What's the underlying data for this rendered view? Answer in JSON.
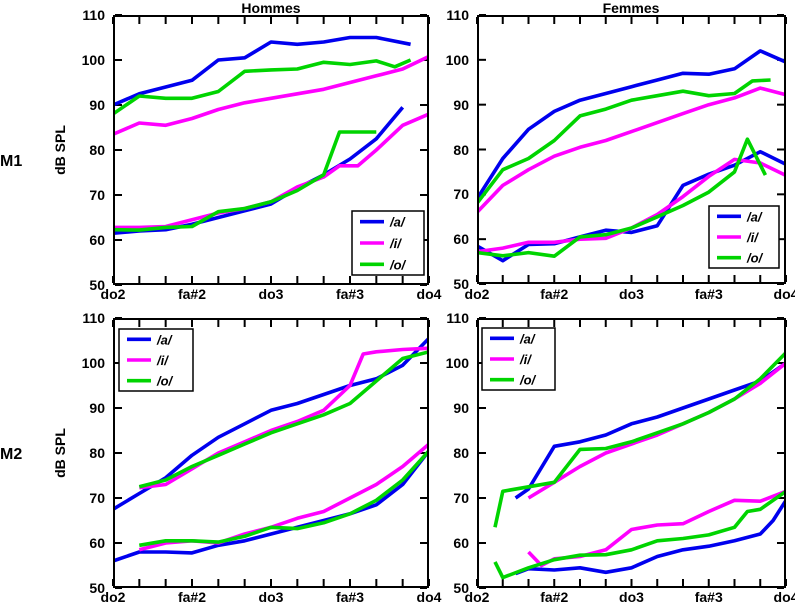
{
  "title_row": {
    "left": "Hommes",
    "right": "Femmes"
  },
  "row_labels": {
    "top": "M1",
    "bottom": "M2"
  },
  "ylabel": "dB SPL",
  "colors": {
    "a": "#0000EE",
    "i": "#FF00FF",
    "o": "#00D400"
  },
  "legend_items": [
    {
      "vowel": "a",
      "label": "/a/"
    },
    {
      "vowel": "i",
      "label": "/i/"
    },
    {
      "vowel": "o",
      "label": "/o/"
    }
  ],
  "axis": {
    "y_ticks": [
      50,
      60,
      70,
      80,
      90,
      100,
      110
    ],
    "y_range": [
      50,
      110
    ],
    "x_range": [
      0,
      12
    ],
    "n_x_ticks": 13,
    "x_major_positions": [
      0,
      3,
      6,
      9,
      12
    ],
    "x_major_labels": [
      "do2",
      "fa#2",
      "do3",
      "fa#3",
      "do4"
    ]
  },
  "chart_data": [
    {
      "id": "m1-hommes",
      "type": "line",
      "title": "Hommes",
      "row": "M1",
      "position": "top-left",
      "legend_pos": "bottom-right",
      "series": [
        {
          "name": "a_loud",
          "vowel": "a",
          "x": [
            0,
            1,
            2,
            3,
            4,
            5,
            6,
            7,
            8,
            9,
            10,
            11.3
          ],
          "y": [
            90,
            92.5,
            94,
            95.5,
            100,
            100.5,
            104,
            103.5,
            104,
            105,
            105,
            103.5
          ]
        },
        {
          "name": "i_loud",
          "vowel": "i",
          "x": [
            0,
            1,
            2,
            3,
            4,
            5,
            6,
            7,
            8,
            9,
            10,
            11,
            12
          ],
          "y": [
            83.5,
            86,
            85.5,
            87,
            89,
            90.5,
            91.5,
            92.5,
            93.5,
            95,
            96.5,
            98,
            100.8
          ]
        },
        {
          "name": "o_loud",
          "vowel": "o",
          "x": [
            0,
            1,
            2,
            3,
            4,
            5,
            6,
            7,
            8,
            9,
            10,
            10.7,
            11.3
          ],
          "y": [
            88,
            92,
            91.5,
            91.5,
            93,
            97.5,
            97.8,
            98,
            99.5,
            99,
            99.8,
            98.5,
            100
          ]
        },
        {
          "name": "a_soft",
          "vowel": "a",
          "x": [
            0,
            1,
            2,
            3,
            4,
            5,
            6,
            7,
            8,
            9,
            10,
            11
          ],
          "y": [
            61.5,
            62,
            62.3,
            63.5,
            65,
            66.5,
            68,
            71.5,
            74.5,
            78,
            82.5,
            89.5
          ]
        },
        {
          "name": "i_soft",
          "vowel": "i",
          "x": [
            0,
            1,
            2,
            3,
            4,
            5,
            6,
            7,
            8,
            8.6,
            9.3,
            10,
            11,
            12
          ],
          "y": [
            62.8,
            62.8,
            63,
            64.5,
            66,
            67,
            68.5,
            71.8,
            74,
            76.5,
            76.5,
            80,
            85.5,
            88
          ]
        },
        {
          "name": "o_soft",
          "vowel": "o",
          "x": [
            0,
            1,
            2,
            3,
            4,
            5,
            6,
            7,
            8,
            8.6,
            10
          ],
          "y": [
            62.3,
            62.2,
            62.8,
            63,
            66.3,
            67,
            68.5,
            71,
            74.5,
            84,
            84
          ]
        }
      ]
    },
    {
      "id": "m1-femmes",
      "type": "line",
      "title": "Femmes",
      "row": "M1",
      "position": "top-right",
      "legend_pos": "bottom-right",
      "series": [
        {
          "name": "a_loud",
          "vowel": "a",
          "x": [
            0,
            1,
            2,
            3,
            4,
            5,
            6,
            7,
            8,
            9,
            10,
            11,
            12
          ],
          "y": [
            69,
            78,
            84.5,
            88.5,
            91,
            92.5,
            94,
            95.5,
            97,
            96.8,
            98,
            102,
            99.5
          ]
        },
        {
          "name": "i_loud",
          "vowel": "i",
          "x": [
            0,
            1,
            2,
            3,
            4,
            5,
            6,
            7,
            8,
            9,
            10,
            11,
            12
          ],
          "y": [
            66,
            72,
            75.5,
            78.5,
            80.5,
            82,
            84,
            86,
            88,
            90,
            91.5,
            93.7,
            92.2
          ]
        },
        {
          "name": "o_loud",
          "vowel": "o",
          "x": [
            0,
            1,
            2,
            3,
            4,
            5,
            6,
            7,
            8,
            9,
            10,
            10.7,
            11.4
          ],
          "y": [
            68,
            75.5,
            78,
            82,
            87.5,
            89,
            91,
            92,
            93,
            92,
            92.5,
            95.3,
            95.5
          ]
        },
        {
          "name": "a_soft",
          "vowel": "a",
          "x": [
            0,
            1,
            2,
            3,
            4,
            5,
            6,
            7,
            8,
            9,
            10,
            11,
            12
          ],
          "y": [
            58.5,
            55.2,
            58.8,
            59,
            60.5,
            62,
            61.5,
            63,
            72,
            74.5,
            76.5,
            79.5,
            76.7
          ]
        },
        {
          "name": "i_soft",
          "vowel": "i",
          "x": [
            0,
            1,
            2,
            3,
            4,
            5,
            6,
            7,
            8,
            9,
            10,
            11,
            12
          ],
          "y": [
            57.2,
            58,
            59.3,
            59.3,
            60,
            60.2,
            62.5,
            65.5,
            69.5,
            74,
            77.8,
            77,
            74.2
          ]
        },
        {
          "name": "o_soft",
          "vowel": "o",
          "x": [
            0,
            1,
            2,
            3,
            4,
            5,
            6,
            7,
            8,
            9,
            10,
            10.5,
            11.2
          ],
          "y": [
            57,
            56.3,
            57,
            56.2,
            60.5,
            61,
            62.5,
            65,
            67.5,
            70.5,
            75,
            82.3,
            74.3
          ]
        }
      ]
    },
    {
      "id": "m2-hommes",
      "type": "line",
      "title": "Hommes",
      "row": "M2",
      "position": "bottom-left",
      "legend_pos": "top-left",
      "series": [
        {
          "name": "a_loud",
          "vowel": "a",
          "x": [
            0,
            1,
            2,
            3,
            4,
            5,
            6,
            7,
            8,
            9,
            10,
            11,
            12
          ],
          "y": [
            67.5,
            71,
            74.5,
            79.5,
            83.5,
            86.5,
            89.5,
            91,
            93,
            95,
            96.5,
            99.5,
            105.5
          ]
        },
        {
          "name": "i_loud",
          "vowel": "i",
          "x": [
            1,
            2,
            3,
            4,
            5,
            6,
            7,
            8,
            9,
            9.5,
            10,
            11,
            12
          ],
          "y": [
            72.3,
            73,
            76.5,
            80,
            82.5,
            85,
            87,
            89.5,
            95,
            102,
            102.5,
            103,
            103.3
          ]
        },
        {
          "name": "o_loud",
          "vowel": "o",
          "x": [
            1,
            2,
            3,
            4,
            5,
            6,
            7,
            8,
            9,
            10,
            11,
            12
          ],
          "y": [
            72.5,
            74,
            77,
            79.5,
            82,
            84.5,
            86.5,
            88.5,
            91,
            96,
            101,
            102.5
          ]
        },
        {
          "name": "a_soft",
          "vowel": "a",
          "x": [
            0,
            1,
            2,
            3,
            4,
            5,
            6,
            7,
            8,
            9,
            10,
            11,
            12
          ],
          "y": [
            56,
            58,
            58,
            57.8,
            59.5,
            60.5,
            62,
            63.5,
            65,
            66.5,
            68.5,
            73,
            80.5
          ]
        },
        {
          "name": "i_soft",
          "vowel": "i",
          "x": [
            1,
            2,
            3,
            4,
            5,
            6,
            7,
            8,
            9,
            10,
            11,
            12
          ],
          "y": [
            58.5,
            60,
            60.5,
            60,
            62,
            63.5,
            65.5,
            67,
            70,
            73,
            77,
            82
          ]
        },
        {
          "name": "o_soft",
          "vowel": "o",
          "x": [
            1,
            2,
            3,
            4,
            5,
            6,
            7,
            8,
            9,
            10,
            11,
            12
          ],
          "y": [
            59.5,
            60.5,
            60.5,
            60.2,
            61.5,
            63.5,
            63.2,
            64.5,
            66.5,
            69.5,
            74,
            80.5
          ]
        }
      ]
    },
    {
      "id": "m2-femmes",
      "type": "line",
      "title": "Femmes",
      "row": "M2",
      "position": "bottom-right",
      "legend_pos": "top-left",
      "series": [
        {
          "name": "a_loud",
          "vowel": "a",
          "x": [
            1.5,
            2,
            3,
            4,
            5,
            6,
            7,
            8,
            9,
            10,
            11,
            12
          ],
          "y": [
            70,
            72,
            81.5,
            82.5,
            84,
            86.5,
            88,
            90,
            92,
            94,
            96,
            100
          ]
        },
        {
          "name": "i_loud",
          "vowel": "i",
          "x": [
            2,
            3,
            4,
            5,
            6,
            7,
            8,
            9,
            10,
            11,
            12
          ],
          "y": [
            70,
            73.5,
            77,
            80,
            82,
            84,
            86.5,
            89,
            92,
            95.5,
            100
          ]
        },
        {
          "name": "o_loud",
          "vowel": "o",
          "x": [
            0.7,
            1,
            2,
            3,
            4,
            5,
            6,
            7,
            8,
            9,
            10,
            11,
            12
          ],
          "y": [
            63.5,
            71.5,
            72.5,
            73.5,
            80.8,
            81,
            82.5,
            84.5,
            86.5,
            89,
            92,
            96.5,
            102.3
          ]
        },
        {
          "name": "a_soft",
          "vowel": "a",
          "x": [
            1.5,
            2,
            3,
            4,
            5,
            6,
            7,
            8,
            9,
            10,
            11,
            11.5,
            12
          ],
          "y": [
            53.2,
            54.3,
            54,
            54.5,
            53.5,
            54.5,
            57,
            58.5,
            59.3,
            60.5,
            62,
            65,
            69.5
          ]
        },
        {
          "name": "i_soft",
          "vowel": "i",
          "x": [
            2,
            2.5,
            3,
            4,
            5,
            6,
            7,
            8,
            9,
            10,
            11,
            12
          ],
          "y": [
            58,
            55,
            56.5,
            57,
            58.5,
            63,
            64,
            64.3,
            67,
            69.5,
            69.3,
            71.5
          ]
        },
        {
          "name": "o_soft",
          "vowel": "o",
          "x": [
            0.7,
            1,
            2,
            3,
            4,
            5,
            6,
            7,
            8,
            9,
            10,
            10.5,
            11,
            12
          ],
          "y": [
            55.8,
            52.3,
            54.5,
            56.3,
            57.3,
            57.4,
            58.5,
            60.5,
            61,
            61.8,
            63.5,
            67,
            67.5,
            71.5
          ]
        }
      ]
    }
  ]
}
